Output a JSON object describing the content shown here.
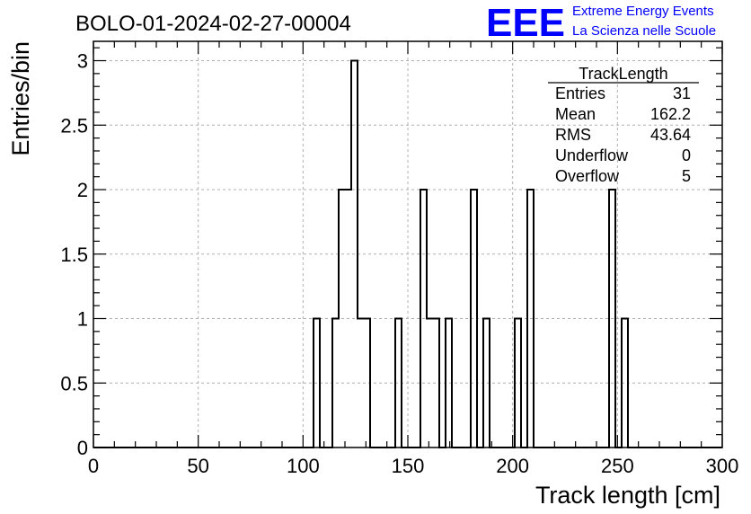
{
  "chart_data": {
    "type": "bar",
    "title": "BOLO-01-2024-02-27-00004",
    "xlabel": "Track length [cm]",
    "ylabel": "Entries/bin",
    "xlim": [
      0,
      300
    ],
    "ylim": [
      0,
      3.15
    ],
    "bin_width": 3,
    "grid": true,
    "x_ticks": [
      "0",
      "50",
      "100",
      "150",
      "200",
      "250",
      "300"
    ],
    "y_ticks": [
      "0",
      "0.5",
      "1",
      "1.5",
      "2",
      "2.5",
      "3"
    ],
    "bins": [
      {
        "x": 105,
        "value": 1
      },
      {
        "x": 114,
        "value": 1
      },
      {
        "x": 117,
        "value": 2
      },
      {
        "x": 120,
        "value": 2
      },
      {
        "x": 123,
        "value": 3
      },
      {
        "x": 126,
        "value": 1
      },
      {
        "x": 129,
        "value": 1
      },
      {
        "x": 144,
        "value": 1
      },
      {
        "x": 156,
        "value": 2
      },
      {
        "x": 159,
        "value": 1
      },
      {
        "x": 162,
        "value": 1
      },
      {
        "x": 168,
        "value": 1
      },
      {
        "x": 180,
        "value": 2
      },
      {
        "x": 186,
        "value": 1
      },
      {
        "x": 201,
        "value": 1
      },
      {
        "x": 207,
        "value": 2
      },
      {
        "x": 246,
        "value": 2
      },
      {
        "x": 252,
        "value": 1
      }
    ]
  },
  "stats_box": {
    "title": "TrackLength",
    "rows": [
      {
        "label": "Entries",
        "value": "31"
      },
      {
        "label": "Mean",
        "value": "162.2"
      },
      {
        "label": "RMS",
        "value": "43.64"
      },
      {
        "label": "Underflow",
        "value": "0"
      },
      {
        "label": "Overflow",
        "value": "5"
      }
    ]
  },
  "logo": {
    "mark": "EEE",
    "line1": "Extreme Energy Events",
    "line2": "La Scienza nelle Scuole",
    "color": "#0000ff"
  }
}
